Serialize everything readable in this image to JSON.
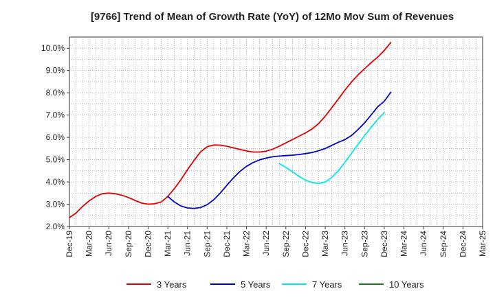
{
  "chart_data": {
    "type": "line",
    "title": "[9766]  Trend of Mean of Growth Rate (YoY) of 12Mo Mov Sum of Revenues",
    "xlabel": "",
    "ylabel": "",
    "ylim": [
      2.0,
      10.5
    ],
    "yticks": [
      2.0,
      3.0,
      4.0,
      5.0,
      6.0,
      7.0,
      8.0,
      9.0,
      10.0
    ],
    "ytick_labels": [
      "2.0%",
      "3.0%",
      "4.0%",
      "5.0%",
      "6.0%",
      "7.0%",
      "8.0%",
      "9.0%",
      "10.0%"
    ],
    "x_months_range": [
      0,
      63
    ],
    "xticks": [
      {
        "m": 0,
        "label": "Dec-19"
      },
      {
        "m": 3,
        "label": "Mar-20"
      },
      {
        "m": 6,
        "label": "Jun-20"
      },
      {
        "m": 9,
        "label": "Sep-20"
      },
      {
        "m": 12,
        "label": "Dec-20"
      },
      {
        "m": 15,
        "label": "Mar-21"
      },
      {
        "m": 18,
        "label": "Jun-21"
      },
      {
        "m": 21,
        "label": "Sep-21"
      },
      {
        "m": 24,
        "label": "Dec-21"
      },
      {
        "m": 27,
        "label": "Mar-22"
      },
      {
        "m": 30,
        "label": "Jun-22"
      },
      {
        "m": 33,
        "label": "Sep-22"
      },
      {
        "m": 36,
        "label": "Dec-22"
      },
      {
        "m": 39,
        "label": "Mar-23"
      },
      {
        "m": 42,
        "label": "Jun-23"
      },
      {
        "m": 45,
        "label": "Sep-23"
      },
      {
        "m": 48,
        "label": "Dec-23"
      },
      {
        "m": 51,
        "label": "Mar-24"
      },
      {
        "m": 54,
        "label": "Jun-24"
      },
      {
        "m": 57,
        "label": "Sep-24"
      },
      {
        "m": 60,
        "label": "Dec-24"
      },
      {
        "m": 63,
        "label": "Mar-25"
      }
    ],
    "grid": true,
    "legend_position": "bottom",
    "series": [
      {
        "name": "3 Years",
        "color": "#e00000",
        "points": [
          [
            0,
            2.4
          ],
          [
            1,
            2.6
          ],
          [
            2,
            2.9
          ],
          [
            3,
            3.15
          ],
          [
            4,
            3.35
          ],
          [
            5,
            3.47
          ],
          [
            6,
            3.5
          ],
          [
            7,
            3.47
          ],
          [
            8,
            3.4
          ],
          [
            9,
            3.3
          ],
          [
            10,
            3.17
          ],
          [
            11,
            3.05
          ],
          [
            12,
            3.0
          ],
          [
            13,
            3.02
          ],
          [
            14,
            3.1
          ],
          [
            15,
            3.35
          ],
          [
            16,
            3.7
          ],
          [
            17,
            4.1
          ],
          [
            18,
            4.55
          ],
          [
            19,
            4.97
          ],
          [
            20,
            5.35
          ],
          [
            21,
            5.58
          ],
          [
            22,
            5.66
          ],
          [
            23,
            5.65
          ],
          [
            24,
            5.6
          ],
          [
            25,
            5.53
          ],
          [
            26,
            5.46
          ],
          [
            27,
            5.39
          ],
          [
            28,
            5.34
          ],
          [
            29,
            5.34
          ],
          [
            30,
            5.38
          ],
          [
            31,
            5.47
          ],
          [
            32,
            5.6
          ],
          [
            33,
            5.75
          ],
          [
            34,
            5.9
          ],
          [
            35,
            6.05
          ],
          [
            36,
            6.2
          ],
          [
            37,
            6.38
          ],
          [
            38,
            6.62
          ],
          [
            39,
            6.95
          ],
          [
            40,
            7.33
          ],
          [
            41,
            7.72
          ],
          [
            42,
            8.12
          ],
          [
            43,
            8.48
          ],
          [
            44,
            8.8
          ],
          [
            45,
            9.08
          ],
          [
            46,
            9.35
          ],
          [
            47,
            9.6
          ],
          [
            48,
            9.9
          ],
          [
            49,
            10.25
          ]
        ]
      },
      {
        "name": "5 Years",
        "color": "#0000cc",
        "points": [
          [
            15,
            3.35
          ],
          [
            16,
            3.1
          ],
          [
            17,
            2.92
          ],
          [
            18,
            2.83
          ],
          [
            19,
            2.81
          ],
          [
            20,
            2.85
          ],
          [
            21,
            2.98
          ],
          [
            22,
            3.2
          ],
          [
            23,
            3.5
          ],
          [
            24,
            3.85
          ],
          [
            25,
            4.18
          ],
          [
            26,
            4.47
          ],
          [
            27,
            4.7
          ],
          [
            28,
            4.87
          ],
          [
            29,
            4.99
          ],
          [
            30,
            5.07
          ],
          [
            31,
            5.13
          ],
          [
            32,
            5.16
          ],
          [
            33,
            5.18
          ],
          [
            34,
            5.2
          ],
          [
            35,
            5.23
          ],
          [
            36,
            5.27
          ],
          [
            37,
            5.32
          ],
          [
            38,
            5.4
          ],
          [
            39,
            5.5
          ],
          [
            40,
            5.64
          ],
          [
            41,
            5.78
          ],
          [
            42,
            5.9
          ],
          [
            43,
            6.08
          ],
          [
            44,
            6.35
          ],
          [
            45,
            6.65
          ],
          [
            46,
            7.0
          ],
          [
            47,
            7.37
          ],
          [
            48,
            7.62
          ],
          [
            49,
            8.02
          ]
        ]
      },
      {
        "name": "7 Years",
        "color": "#00e8e8",
        "points": [
          [
            32,
            4.82
          ],
          [
            33,
            4.65
          ],
          [
            34,
            4.45
          ],
          [
            35,
            4.25
          ],
          [
            36,
            4.08
          ],
          [
            37,
            3.97
          ],
          [
            38,
            3.93
          ],
          [
            39,
            4.0
          ],
          [
            40,
            4.2
          ],
          [
            41,
            4.5
          ],
          [
            42,
            4.88
          ],
          [
            43,
            5.28
          ],
          [
            44,
            5.68
          ],
          [
            45,
            6.08
          ],
          [
            46,
            6.45
          ],
          [
            47,
            6.8
          ],
          [
            48,
            7.12
          ]
        ]
      },
      {
        "name": "10 Years",
        "color": "#1a7a1a",
        "points": []
      }
    ]
  }
}
